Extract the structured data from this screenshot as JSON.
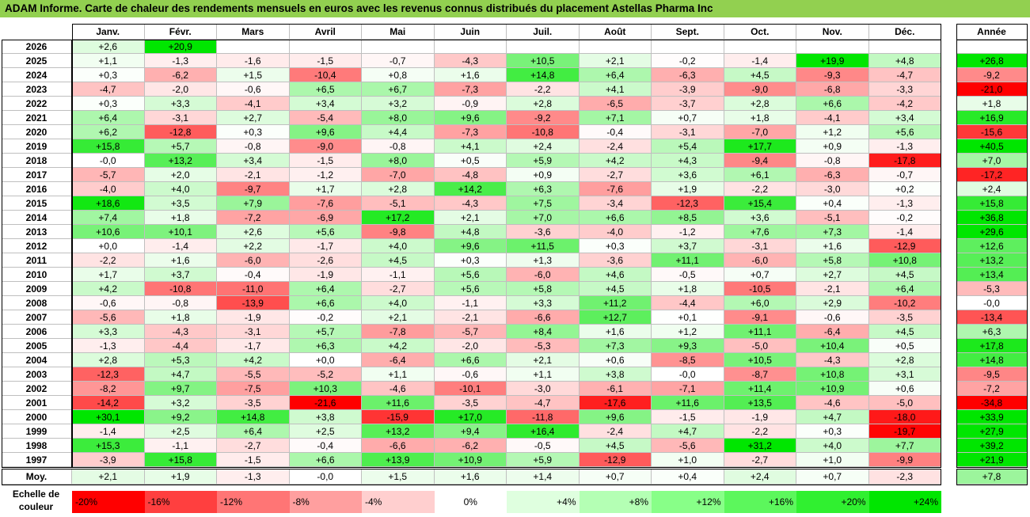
{
  "title": "ADAM Informe. Carte de chaleur des rendements mensuels en euros avec les revenus connus distribués du placement Astellas Pharma Inc",
  "chart_data": {
    "type": "heatmap",
    "columns": [
      "Janv.",
      "Févr.",
      "Mars",
      "Avril",
      "Mai",
      "Juin",
      "Juil.",
      "Août",
      "Sept.",
      "Oct.",
      "Nov.",
      "Déc."
    ],
    "year_column": "Année",
    "average_label": "Moy.",
    "rows": [
      {
        "year": "2026",
        "months": [
          "+2,6",
          "+20,9",
          "",
          "",
          "",
          "",
          "",
          "",
          "",
          "",
          "",
          ""
        ],
        "annual": ""
      },
      {
        "year": "2025",
        "months": [
          "+1,1",
          "-1,3",
          "-1,6",
          "-1,5",
          "-0,7",
          "-4,3",
          "+10,5",
          "+2,1",
          "-0,2",
          "-1,4",
          "+19,9",
          "+4,8"
        ],
        "annual": "+26,8"
      },
      {
        "year": "2024",
        "months": [
          "+0,3",
          "-6,2",
          "+1,5",
          "-10,4",
          "+0,8",
          "+1,6",
          "+14,8",
          "+6,4",
          "-6,3",
          "+4,5",
          "-9,3",
          "-4,7"
        ],
        "annual": "-9,2"
      },
      {
        "year": "2023",
        "months": [
          "-4,7",
          "-2,0",
          "-0,6",
          "+6,5",
          "+6,7",
          "-7,3",
          "-2,2",
          "+4,1",
          "-3,9",
          "-9,0",
          "-6,8",
          "-3,3"
        ],
        "annual": "-21,0"
      },
      {
        "year": "2022",
        "months": [
          "+0,3",
          "+3,3",
          "-4,1",
          "+3,4",
          "+3,2",
          "-0,9",
          "+2,8",
          "-6,5",
          "-3,7",
          "+2,8",
          "+6,6",
          "-4,2"
        ],
        "annual": "+1,8"
      },
      {
        "year": "2021",
        "months": [
          "+6,4",
          "-3,1",
          "+2,7",
          "-5,4",
          "+8,0",
          "+9,6",
          "-9,2",
          "+7,1",
          "+0,7",
          "+1,8",
          "-4,1",
          "+3,4"
        ],
        "annual": "+16,9"
      },
      {
        "year": "2020",
        "months": [
          "+6,2",
          "-12,8",
          "+0,3",
          "+9,6",
          "+4,4",
          "-7,3",
          "-10,8",
          "-0,4",
          "-3,1",
          "-7,0",
          "+1,2",
          "+5,6"
        ],
        "annual": "-15,6"
      },
      {
        "year": "2019",
        "months": [
          "+15,8",
          "+5,7",
          "-0,8",
          "-9,0",
          "-0,8",
          "+4,1",
          "+2,4",
          "-2,4",
          "+5,4",
          "+17,7",
          "+0,9",
          "-1,3"
        ],
        "annual": "+40,5"
      },
      {
        "year": "2018",
        "months": [
          "-0,0",
          "+13,2",
          "+3,4",
          "-1,5",
          "+8,0",
          "+0,5",
          "+5,9",
          "+4,2",
          "+4,3",
          "-9,4",
          "-0,8",
          "-17,8"
        ],
        "annual": "+7,0"
      },
      {
        "year": "2017",
        "months": [
          "-5,7",
          "+2,0",
          "-2,1",
          "-1,2",
          "-7,0",
          "-4,8",
          "+0,9",
          "-2,7",
          "+3,6",
          "+6,1",
          "-6,3",
          "-0,7"
        ],
        "annual": "-17,2"
      },
      {
        "year": "2016",
        "months": [
          "-4,0",
          "+4,0",
          "-9,7",
          "+1,7",
          "+2,8",
          "+14,2",
          "+6,3",
          "-7,6",
          "+1,9",
          "-2,2",
          "-3,0",
          "+0,2"
        ],
        "annual": "+2,4"
      },
      {
        "year": "2015",
        "months": [
          "+18,6",
          "+3,5",
          "+7,9",
          "-7,6",
          "-5,1",
          "-4,3",
          "+7,5",
          "-3,4",
          "-12,3",
          "+15,4",
          "+0,4",
          "-1,3"
        ],
        "annual": "+15,8"
      },
      {
        "year": "2014",
        "months": [
          "+7,4",
          "+1,8",
          "-7,2",
          "-6,9",
          "+17,2",
          "+2,1",
          "+7,0",
          "+6,6",
          "+8,5",
          "+3,6",
          "-5,1",
          "-0,2"
        ],
        "annual": "+36,8"
      },
      {
        "year": "2013",
        "months": [
          "+10,6",
          "+10,1",
          "+2,6",
          "+5,6",
          "-9,8",
          "+4,8",
          "-3,6",
          "-4,0",
          "-1,2",
          "+7,6",
          "+7,3",
          "-1,4"
        ],
        "annual": "+29,6"
      },
      {
        "year": "2012",
        "months": [
          "+0,0",
          "-1,4",
          "+2,2",
          "-1,7",
          "+4,0",
          "+9,6",
          "+11,5",
          "+0,3",
          "+3,7",
          "-3,1",
          "+1,6",
          "-12,9"
        ],
        "annual": "+12,6"
      },
      {
        "year": "2011",
        "months": [
          "-2,2",
          "+1,6",
          "-6,0",
          "-2,6",
          "+4,5",
          "+0,3",
          "+1,3",
          "-3,6",
          "+11,1",
          "-6,0",
          "+5,8",
          "+10,8"
        ],
        "annual": "+13,2"
      },
      {
        "year": "2010",
        "months": [
          "+1,7",
          "+3,7",
          "-0,4",
          "-1,9",
          "-1,1",
          "+5,6",
          "-6,0",
          "+4,6",
          "-0,5",
          "+0,7",
          "+2,7",
          "+4,5"
        ],
        "annual": "+13,4"
      },
      {
        "year": "2009",
        "months": [
          "+4,2",
          "-10,8",
          "-11,0",
          "+6,4",
          "-2,7",
          "+5,6",
          "+5,8",
          "+4,5",
          "+1,8",
          "-10,5",
          "-2,1",
          "+6,4"
        ],
        "annual": "-5,3"
      },
      {
        "year": "2008",
        "months": [
          "-0,6",
          "-0,8",
          "-13,9",
          "+6,6",
          "+4,0",
          "-1,1",
          "+3,3",
          "+11,2",
          "-4,4",
          "+6,0",
          "+2,9",
          "-10,2"
        ],
        "annual": "-0,0"
      },
      {
        "year": "2007",
        "months": [
          "-5,6",
          "+1,8",
          "-1,9",
          "-0,2",
          "+2,1",
          "-2,1",
          "-6,6",
          "+12,7",
          "+0,1",
          "-9,1",
          "-0,6",
          "-3,5"
        ],
        "annual": "-13,4"
      },
      {
        "year": "2006",
        "months": [
          "+3,3",
          "-4,3",
          "-3,1",
          "+5,7",
          "-7,8",
          "-5,7",
          "+8,4",
          "+1,6",
          "+1,2",
          "+11,1",
          "-6,4",
          "+4,5"
        ],
        "annual": "+6,3"
      },
      {
        "year": "2005",
        "months": [
          "-1,3",
          "-4,4",
          "-1,7",
          "+6,3",
          "+4,2",
          "-2,0",
          "-5,3",
          "+7,3",
          "+9,3",
          "-5,0",
          "+10,4",
          "+0,5"
        ],
        "annual": "+17,8"
      },
      {
        "year": "2004",
        "months": [
          "+2,8",
          "+5,3",
          "+4,2",
          "+0,0",
          "-6,4",
          "+6,6",
          "+2,1",
          "+0,6",
          "-8,5",
          "+10,5",
          "-4,3",
          "+2,8"
        ],
        "annual": "+14,8"
      },
      {
        "year": "2003",
        "months": [
          "-12,3",
          "+4,7",
          "-5,5",
          "-5,2",
          "+1,1",
          "-0,6",
          "+1,1",
          "+3,8",
          "-0,0",
          "-8,7",
          "+10,8",
          "+3,1"
        ],
        "annual": "-9,5"
      },
      {
        "year": "2002",
        "months": [
          "-8,2",
          "+9,7",
          "-7,5",
          "+10,3",
          "-4,6",
          "-10,1",
          "-3,0",
          "-6,1",
          "-7,1",
          "+11,4",
          "+10,9",
          "+0,6"
        ],
        "annual": "-7,2"
      },
      {
        "year": "2001",
        "months": [
          "-14,2",
          "+3,2",
          "-3,5",
          "-21,6",
          "+11,6",
          "-3,5",
          "-4,7",
          "-17,6",
          "+11,6",
          "+13,5",
          "-4,6",
          "-5,0"
        ],
        "annual": "-34,8"
      },
      {
        "year": "2000",
        "months": [
          "+30,1",
          "+9,2",
          "+14,8",
          "+3,8",
          "-15,9",
          "+17,0",
          "-11,8",
          "+9,6",
          "-1,5",
          "-1,9",
          "+4,7",
          "-18,0"
        ],
        "annual": "+33,9"
      },
      {
        "year": "1999",
        "months": [
          "-1,4",
          "+2,5",
          "+6,4",
          "+2,5",
          "+13,2",
          "+9,4",
          "+16,4",
          "-2,4",
          "+4,7",
          "-2,2",
          "+0,3",
          "-19,7"
        ],
        "annual": "+27,9"
      },
      {
        "year": "1998",
        "months": [
          "+15,3",
          "-1,1",
          "-2,7",
          "-0,4",
          "-6,6",
          "-6,2",
          "-0,5",
          "+4,5",
          "-5,6",
          "+31,2",
          "+4,0",
          "+7,7"
        ],
        "annual": "+39,2"
      },
      {
        "year": "1997",
        "months": [
          "-3,9",
          "+15,8",
          "-1,5",
          "+6,6",
          "+13,9",
          "+10,9",
          "+5,9",
          "-12,9",
          "+1,0",
          "-2,7",
          "+1,0",
          "-9,9"
        ],
        "annual": "+21,9"
      }
    ],
    "averages": {
      "months": [
        "+2,1",
        "+1,9",
        "-1,3",
        "-0,0",
        "+1,5",
        "+1,6",
        "+1,4",
        "+0,7",
        "+0,4",
        "+2,4",
        "+0,7",
        "-2,3"
      ],
      "annual": "+7,8"
    },
    "legend": {
      "label": "Echelle de couleur",
      "items": [
        {
          "text": "-20%",
          "color": "#ff0000"
        },
        {
          "text": "-16%",
          "color": "#ff3f3f"
        },
        {
          "text": "-12%",
          "color": "#ff7575"
        },
        {
          "text": "-8%",
          "color": "#ff9f9f"
        },
        {
          "text": "-4%",
          "color": "#ffcfcf"
        },
        {
          "text": "0%",
          "color": "#ffffff"
        },
        {
          "text": "+4%",
          "color": "#dfffdf"
        },
        {
          "text": "+8%",
          "color": "#b4ffb4"
        },
        {
          "text": "+12%",
          "color": "#88ff88"
        },
        {
          "text": "+16%",
          "color": "#5cf75c"
        },
        {
          "text": "+20%",
          "color": "#30f030"
        },
        {
          "text": "+24%",
          "color": "#00e600"
        }
      ]
    }
  }
}
